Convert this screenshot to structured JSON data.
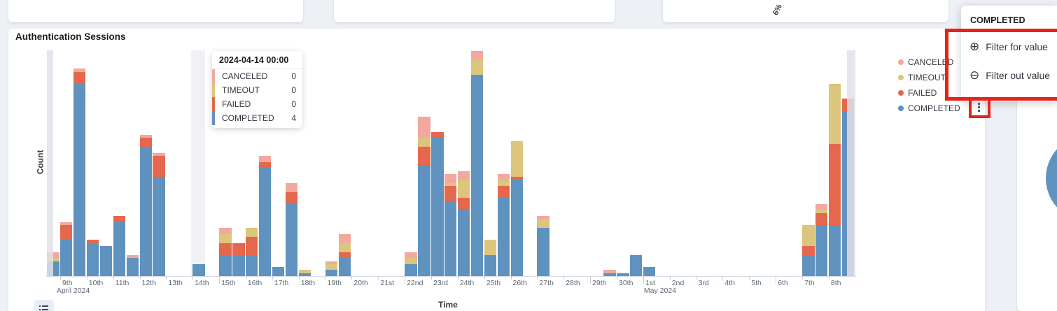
{
  "page_title": "Authentication Sessions dashboard",
  "main_panel": {
    "title": "Authentication Sessions"
  },
  "chart_data": {
    "type": "bar",
    "stacked": true,
    "title": "Authentication Sessions",
    "xlabel": "Time",
    "ylabel": "Count",
    "ylim": [
      0,
      78
    ],
    "y_tick_labels_shown": false,
    "grid": false,
    "legend_position": "right",
    "bucket_interval": "12h",
    "x_range": [
      "2024-04-08 12:00",
      "2024-05-08 24:00"
    ],
    "x_tick_labels": [
      "9th",
      "10th",
      "11th",
      "12th",
      "13th",
      "14th",
      "15th",
      "16th",
      "17th",
      "18th",
      "19th",
      "20th",
      "21st",
      "22nd",
      "23rd",
      "24th",
      "25th",
      "26th",
      "27th",
      "28th",
      "29th",
      "30th",
      "1st",
      "2nd",
      "3rd",
      "4th",
      "5th",
      "6th",
      "7th",
      "8th"
    ],
    "major_tick_labels": [
      "15th",
      "22nd",
      "29th",
      "1st",
      "6th"
    ],
    "month_labels": [
      {
        "text": "April 2024",
        "tick_index": 0
      },
      {
        "text": "May 2024",
        "tick_index": 22
      }
    ],
    "series_order_bottom_to_top": [
      "COMPLETED",
      "FAILED",
      "TIMEOUT",
      "CANCELED"
    ],
    "colors": {
      "COMPLETED": "#6092C0",
      "FAILED": "#E5674E",
      "TIMEOUT": "#DCC57D",
      "CANCELED": "#F2A89E"
    },
    "hovered_bucket": "2024-04-14 00:00",
    "partial_bucket_markers": [
      "2024-04-08 12:00",
      "2024-05-08 12:00"
    ],
    "buckets": [
      {
        "date": "2024-04-08 12:00",
        "COMPLETED": 5,
        "FAILED": 0,
        "TIMEOUT": 1,
        "CANCELED": 2
      },
      {
        "date": "2024-04-09 00:00",
        "COMPLETED": 12,
        "FAILED": 5,
        "TIMEOUT": 0,
        "CANCELED": 1
      },
      {
        "date": "2024-04-09 12:00",
        "COMPLETED": 64,
        "FAILED": 4,
        "TIMEOUT": 0,
        "CANCELED": 1
      },
      {
        "date": "2024-04-10 00:00",
        "COMPLETED": 11,
        "FAILED": 1,
        "TIMEOUT": 0,
        "CANCELED": 0
      },
      {
        "date": "2024-04-10 12:00",
        "COMPLETED": 10,
        "FAILED": 0,
        "TIMEOUT": 0,
        "CANCELED": 0
      },
      {
        "date": "2024-04-11 00:00",
        "COMPLETED": 18,
        "FAILED": 2,
        "TIMEOUT": 0,
        "CANCELED": 0
      },
      {
        "date": "2024-04-11 12:00",
        "COMPLETED": 6,
        "FAILED": 0,
        "TIMEOUT": 0,
        "CANCELED": 1
      },
      {
        "date": "2024-04-12 00:00",
        "COMPLETED": 43,
        "FAILED": 3,
        "TIMEOUT": 0,
        "CANCELED": 1
      },
      {
        "date": "2024-04-12 12:00",
        "COMPLETED": 33,
        "FAILED": 7,
        "TIMEOUT": 0,
        "CANCELED": 1
      },
      {
        "date": "2024-04-14 00:00",
        "COMPLETED": 4,
        "FAILED": 0,
        "TIMEOUT": 0,
        "CANCELED": 0
      },
      {
        "date": "2024-04-15 00:00",
        "COMPLETED": 7,
        "FAILED": 4,
        "TIMEOUT": 3,
        "CANCELED": 2
      },
      {
        "date": "2024-04-15 12:00",
        "COMPLETED": 7,
        "FAILED": 4,
        "TIMEOUT": 0,
        "CANCELED": 0
      },
      {
        "date": "2024-04-16 00:00",
        "COMPLETED": 7,
        "FAILED": 6,
        "TIMEOUT": 3,
        "CANCELED": 0
      },
      {
        "date": "2024-04-16 12:00",
        "COMPLETED": 36,
        "FAILED": 2,
        "TIMEOUT": 0,
        "CANCELED": 2
      },
      {
        "date": "2024-04-17 00:00",
        "COMPLETED": 3,
        "FAILED": 0,
        "TIMEOUT": 0,
        "CANCELED": 0
      },
      {
        "date": "2024-04-17 12:00",
        "COMPLETED": 24,
        "FAILED": 4,
        "TIMEOUT": 0,
        "CANCELED": 3
      },
      {
        "date": "2024-04-18 00:00",
        "COMPLETED": 1,
        "FAILED": 0,
        "TIMEOUT": 1,
        "CANCELED": 0
      },
      {
        "date": "2024-04-19 00:00",
        "COMPLETED": 2,
        "FAILED": 0,
        "TIMEOUT": 2,
        "CANCELED": 1
      },
      {
        "date": "2024-04-19 12:00",
        "COMPLETED": 6,
        "FAILED": 2,
        "TIMEOUT": 3,
        "CANCELED": 3
      },
      {
        "date": "2024-04-22 00:00",
        "COMPLETED": 4,
        "FAILED": 0,
        "TIMEOUT": 2,
        "CANCELED": 2
      },
      {
        "date": "2024-04-22 12:00",
        "COMPLETED": 37,
        "FAILED": 6,
        "TIMEOUT": 3,
        "CANCELED": 7
      },
      {
        "date": "2024-04-23 00:00",
        "COMPLETED": 46,
        "FAILED": 2,
        "TIMEOUT": 0,
        "CANCELED": 0
      },
      {
        "date": "2024-04-23 12:00",
        "COMPLETED": 25,
        "FAILED": 5,
        "TIMEOUT": 1,
        "CANCELED": 3
      },
      {
        "date": "2024-04-24 00:00",
        "COMPLETED": 22,
        "FAILED": 4,
        "TIMEOUT": 6,
        "CANCELED": 3
      },
      {
        "date": "2024-04-24 12:00",
        "COMPLETED": 67,
        "FAILED": 0,
        "TIMEOUT": 5,
        "CANCELED": 3
      },
      {
        "date": "2024-04-25 00:00",
        "COMPLETED": 7,
        "FAILED": 0,
        "TIMEOUT": 5,
        "CANCELED": 0
      },
      {
        "date": "2024-04-25 12:00",
        "COMPLETED": 26,
        "FAILED": 4,
        "TIMEOUT": 2,
        "CANCELED": 2
      },
      {
        "date": "2024-04-26 00:00",
        "COMPLETED": 32,
        "FAILED": 1,
        "TIMEOUT": 12,
        "CANCELED": 0
      },
      {
        "date": "2024-04-27 00:00",
        "COMPLETED": 16,
        "FAILED": 0,
        "TIMEOUT": 3,
        "CANCELED": 1
      },
      {
        "date": "2024-04-29 12:00",
        "COMPLETED": 1,
        "FAILED": 0,
        "TIMEOUT": 0,
        "CANCELED": 1
      },
      {
        "date": "2024-04-30 00:00",
        "COMPLETED": 1,
        "FAILED": 0,
        "TIMEOUT": 0,
        "CANCELED": 0
      },
      {
        "date": "2024-04-30 12:00",
        "COMPLETED": 7,
        "FAILED": 0,
        "TIMEOUT": 0,
        "CANCELED": 0
      },
      {
        "date": "2024-05-01 00:00",
        "COMPLETED": 3,
        "FAILED": 0,
        "TIMEOUT": 0,
        "CANCELED": 0
      },
      {
        "date": "2024-05-07 00:00",
        "COMPLETED": 7,
        "FAILED": 3,
        "TIMEOUT": 7,
        "CANCELED": 0
      },
      {
        "date": "2024-05-07 12:00",
        "COMPLETED": 17,
        "FAILED": 4,
        "TIMEOUT": 1,
        "CANCELED": 2
      },
      {
        "date": "2024-05-08 00:00",
        "COMPLETED": 17,
        "FAILED": 27,
        "TIMEOUT": 20,
        "CANCELED": 0
      },
      {
        "date": "2024-05-08 12:00",
        "COMPLETED": 55,
        "FAILED": 4,
        "TIMEOUT": 0,
        "CANCELED": 0
      }
    ]
  },
  "tooltip": {
    "title": "2024-04-14 00:00",
    "rows": [
      {
        "label": "CANCELED",
        "value": "0",
        "color": "#F2A89E"
      },
      {
        "label": "TIMEOUT",
        "value": "0",
        "color": "#DCC57D"
      },
      {
        "label": "FAILED",
        "value": "0",
        "color": "#E5674E"
      },
      {
        "label": "COMPLETED",
        "value": "4",
        "color": "#6092C0"
      }
    ]
  },
  "legend": {
    "items": [
      {
        "label": "CANCELED",
        "color": "#F2A89E"
      },
      {
        "label": "TIMEOUT",
        "color": "#DCC57D"
      },
      {
        "label": "FAILED",
        "color": "#E5674E"
      },
      {
        "label": "COMPLETED",
        "color": "#6092C0"
      }
    ],
    "kebab_icon": "vertical-dots-menu"
  },
  "context_menu": {
    "title": "COMPLETED",
    "items": [
      {
        "icon": "circle-plus",
        "glyph": "⊕",
        "label": "Filter for value"
      },
      {
        "icon": "circle-minus",
        "glyph": "⊖",
        "label": "Filter out value"
      }
    ]
  },
  "annotations": {
    "highlight_color": "#E5231B"
  },
  "top_region": {
    "pie2_slice_label": "6%"
  },
  "axis_text": {
    "count": "Count",
    "time": "Time"
  }
}
